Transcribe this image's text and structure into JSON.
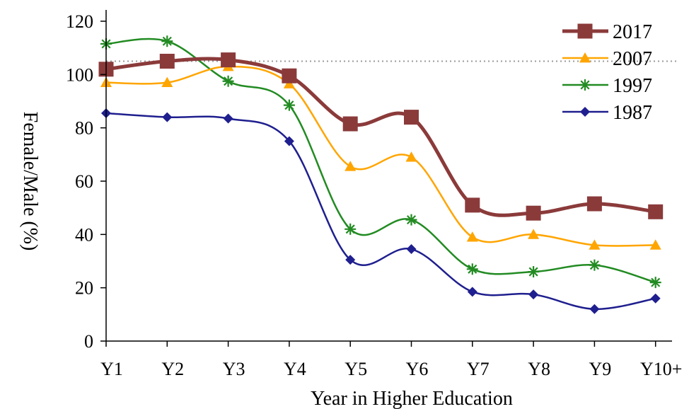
{
  "chart_data": {
    "type": "line",
    "categories": [
      "Y1",
      "Y2",
      "Y3",
      "Y4",
      "Y5",
      "Y6",
      "Y7",
      "Y8",
      "Y9",
      "Y10+"
    ],
    "xlabel": "Year in Higher Education",
    "ylabel": "Female/Male (%)",
    "ylim": [
      0,
      120
    ],
    "yticks": [
      0,
      20,
      40,
      60,
      80,
      100,
      120
    ],
    "reference_line": {
      "y": 105,
      "style": "dotted"
    },
    "legend_position": "top-right",
    "series": [
      {
        "name": "2017",
        "color": "#8B3A3A",
        "marker": "square",
        "values": [
          102,
          105,
          105.5,
          99.5,
          81.5,
          84,
          51,
          48,
          51.5,
          48.5
        ]
      },
      {
        "name": "2007",
        "color": "#FFA500",
        "marker": "triangle",
        "values": [
          97,
          97,
          103,
          96.5,
          65.5,
          69,
          39,
          40,
          36,
          36
        ]
      },
      {
        "name": "1997",
        "color": "#228B22",
        "marker": "star",
        "values": [
          111.5,
          112.5,
          97.5,
          88.5,
          42,
          45.5,
          27,
          26,
          28.5,
          22
        ]
      },
      {
        "name": "1987",
        "color": "#1F1F8F",
        "marker": "diamond",
        "values": [
          85.5,
          84,
          83.5,
          75,
          30.5,
          34.5,
          18.5,
          17.5,
          12,
          16
        ]
      }
    ]
  }
}
